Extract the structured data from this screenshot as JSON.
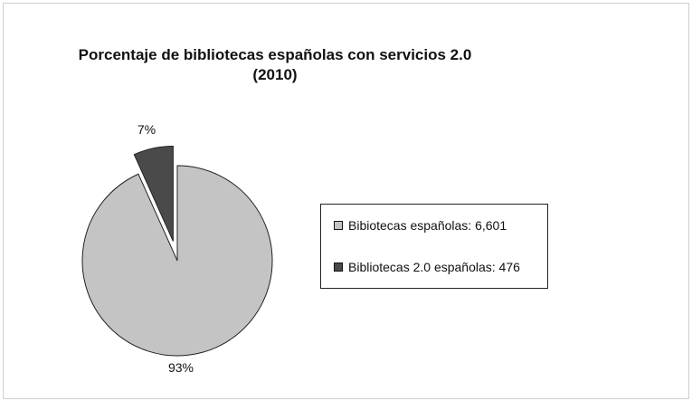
{
  "chart_data": {
    "type": "pie",
    "title_lines": [
      "Porcentaje de bibliotecas españolas con servicios 2.0",
      "(2010)"
    ],
    "slices": [
      {
        "name": "Bibiotecas españolas: 6,601",
        "value": 6601,
        "percent_label": "93%",
        "color": "#c4c4c4",
        "exploded": false
      },
      {
        "name": "Bibliotecas 2.0 españolas: 476",
        "value": 476,
        "percent_label": "7%",
        "color": "#4a4a4a",
        "exploded": true
      }
    ],
    "legend": {
      "placement": "right",
      "entries": [
        "Bibiotecas españolas: 6,601",
        "Bibliotecas 2.0 españolas: 476"
      ]
    }
  }
}
